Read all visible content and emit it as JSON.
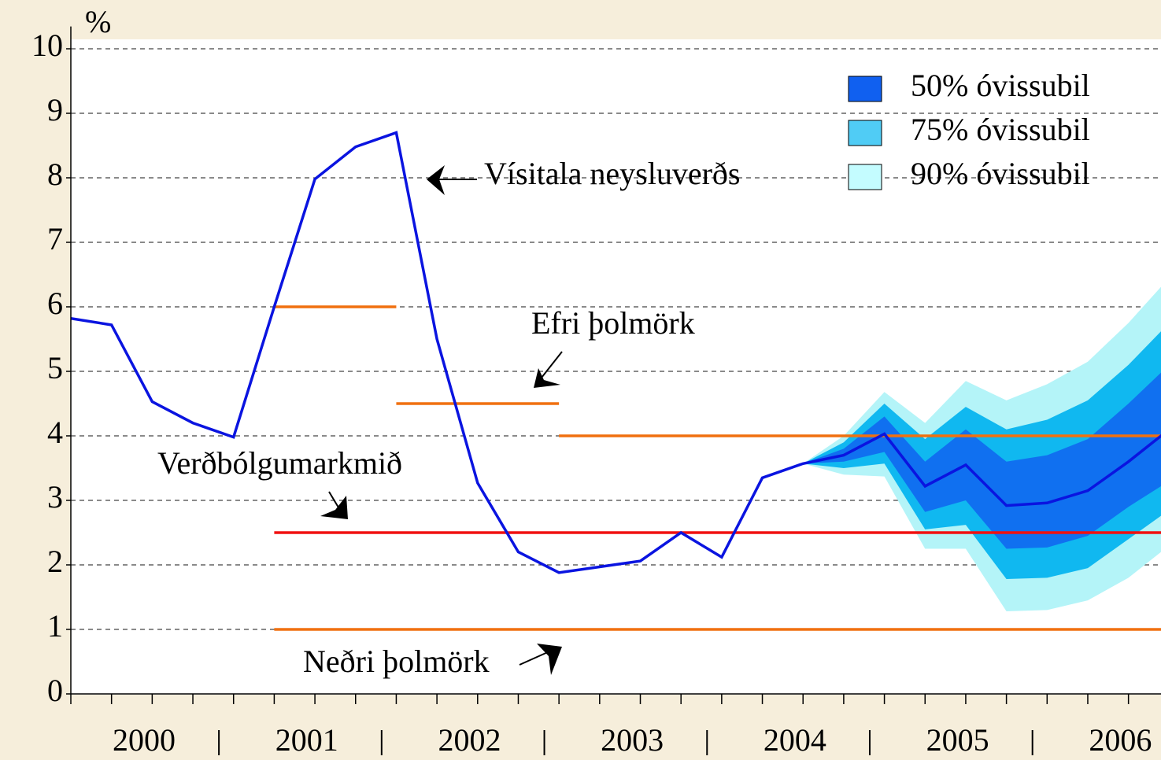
{
  "chart_data": {
    "type": "fan",
    "y_unit_label": "%",
    "ylim": [
      0,
      10.2
    ],
    "yticks": [
      0,
      1,
      2,
      3,
      4,
      5,
      6,
      7,
      8,
      9,
      10
    ],
    "grid": true,
    "xlim": [
      2000,
      2006.7
    ],
    "year_labels": [
      "2000",
      "2001",
      "2002",
      "2003",
      "2004",
      "2005",
      "2006"
    ],
    "x": [
      2000,
      2000.25,
      2000.5,
      2000.75,
      2001,
      2001.25,
      2001.5,
      2001.75,
      2002,
      2002.25,
      2002.5,
      2002.75,
      2003,
      2003.25,
      2003.5,
      2003.75,
      2004,
      2004.25,
      2004.5,
      2004.75,
      2005,
      2005.25,
      2005.5,
      2005.75,
      2006,
      2006.25,
      2006.5,
      2006.75
    ],
    "series": [
      {
        "color": "#0a14e0",
        "values": [
          5.82,
          5.72,
          4.53,
          4.2,
          3.98,
          6.0,
          7.98,
          8.48,
          8.7,
          5.5,
          3.27,
          2.2,
          1.88,
          1.97,
          2.06,
          2.5,
          2.12,
          3.35,
          3.57,
          3.7,
          4.03,
          3.22,
          3.55,
          2.92,
          2.96,
          3.15,
          3.6,
          4.1
        ]
      }
    ],
    "band_x": [
      2004.5,
      2004.75,
      2005,
      2005.25,
      2005.5,
      2005.75,
      2006,
      2006.25,
      2006.5,
      2006.75
    ],
    "bands": [
      {
        "name": "90% óvissubil",
        "color": "#b4f4f8",
        "legend_color": "#c4fcff",
        "upper": [
          3.57,
          4.0,
          4.68,
          4.2,
          4.85,
          4.55,
          4.8,
          5.15,
          5.75,
          6.45
        ],
        "lower": [
          3.57,
          3.4,
          3.37,
          2.25,
          2.25,
          1.28,
          1.3,
          1.45,
          1.8,
          2.3
        ]
      },
      {
        "name": "75% óvissubil",
        "color": "#10b8f0",
        "legend_color": "#50ccf5",
        "upper": [
          3.57,
          3.9,
          4.5,
          3.95,
          4.45,
          4.1,
          4.25,
          4.55,
          5.1,
          5.75
        ],
        "lower": [
          3.57,
          3.5,
          3.57,
          2.55,
          2.62,
          1.78,
          1.8,
          1.95,
          2.4,
          2.85
        ]
      },
      {
        "name": "50% óvissubil",
        "color": "#1070f0",
        "legend_color": "#1060f0",
        "upper": [
          3.57,
          3.8,
          4.3,
          3.6,
          4.1,
          3.6,
          3.7,
          3.95,
          4.5,
          5.1
        ],
        "lower": [
          3.57,
          3.6,
          3.75,
          2.82,
          3.0,
          2.25,
          2.27,
          2.45,
          2.9,
          3.3
        ]
      }
    ],
    "reference_lines": [
      {
        "color": "#f07010",
        "value": 6,
        "x": [
          2001.25,
          2002
        ]
      },
      {
        "color": "#f07010",
        "value": 4.5,
        "x": [
          2002,
          2003
        ]
      },
      {
        "color": "#f07010",
        "value": 4,
        "x": [
          2003,
          2006.7
        ]
      },
      {
        "color": "#f01010",
        "value": 2.5,
        "x": [
          2001.25,
          2006.7
        ]
      },
      {
        "color": "#f07010",
        "value": 1,
        "x": [
          2001.25,
          2006.7
        ]
      }
    ],
    "annotations": [
      "Vísitala neysluverðs",
      "Efri þolmörk",
      "Verðbólgumarkmið",
      "Neðri þolmörk"
    ]
  }
}
